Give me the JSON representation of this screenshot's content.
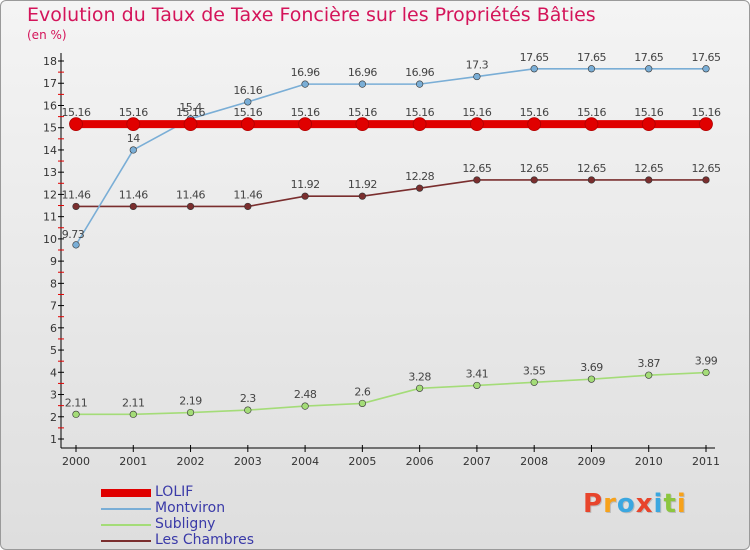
{
  "title": "Evolution du Taux de Taxe Foncière sur les Propriétés Bâties",
  "subtitle": "(en %)",
  "brand": {
    "letters": [
      "P",
      "r",
      "o",
      "x",
      "i",
      "t",
      "i"
    ],
    "colors": [
      "#e8452c",
      "#f7a21b",
      "#3ba7e0",
      "#e8452c",
      "#3ba7e0",
      "#8cc63f",
      "#f7a21b"
    ]
  },
  "chart_data": {
    "type": "line",
    "title": "Evolution du Taux de Taxe Foncière sur les Propriétés Bâties",
    "ylabel": "(en %)",
    "xlabel": "",
    "x": [
      "2000",
      "2001",
      "2002",
      "2003",
      "2004",
      "2005",
      "2006",
      "2007",
      "2008",
      "2009",
      "2010",
      "2011"
    ],
    "ylim": [
      1,
      18
    ],
    "yticks": [
      "1",
      "2",
      "3",
      "4",
      "5",
      "6",
      "7",
      "8",
      "9",
      "10",
      "11",
      "12",
      "13",
      "14",
      "15",
      "16",
      "17",
      "18"
    ],
    "series": [
      {
        "name": "LOLIF",
        "color": "#e00000",
        "values": [
          15.16,
          15.16,
          15.16,
          15.16,
          15.16,
          15.16,
          15.16,
          15.16,
          15.16,
          15.16,
          15.16,
          15.16
        ],
        "labels": [
          "15.16",
          "15.16",
          "15.16",
          "15.16",
          "15.16",
          "15.16",
          "15.16",
          "15.16",
          "15.16",
          "15.16",
          "15.16",
          "15.16"
        ]
      },
      {
        "name": "Montviron",
        "color": "#7aaed6",
        "values": [
          9.73,
          14,
          15.4,
          16.16,
          16.96,
          16.96,
          16.96,
          17.3,
          17.65,
          17.65,
          17.65,
          17.65
        ],
        "labels": [
          "9.73",
          "14",
          "15.4",
          "16.16",
          "16.96",
          "16.96",
          "16.96",
          "17.3",
          "17.65",
          "17.65",
          "17.65",
          "17.65"
        ]
      },
      {
        "name": "Subligny",
        "color": "#a4dc78",
        "values": [
          2.11,
          2.11,
          2.19,
          2.3,
          2.48,
          2.6,
          3.28,
          3.41,
          3.55,
          3.69,
          3.87,
          3.99
        ],
        "labels": [
          "2.11",
          "2.11",
          "2.19",
          "2.3",
          "2.48",
          "2.6",
          "3.28",
          "3.41",
          "3.55",
          "3.69",
          "3.87",
          "3.99"
        ]
      },
      {
        "name": "Les Chambres",
        "color": "#7a2e2e",
        "values": [
          11.46,
          11.46,
          11.46,
          11.46,
          11.92,
          11.92,
          12.28,
          12.65,
          12.65,
          12.65,
          12.65,
          12.65
        ],
        "labels": [
          "11.46",
          "11.46",
          "11.46",
          "11.46",
          "11.92",
          "11.92",
          "12.28",
          "12.65",
          "12.65",
          "12.65",
          "12.65",
          "12.65"
        ]
      }
    ],
    "legend_position": "bottom-left"
  }
}
